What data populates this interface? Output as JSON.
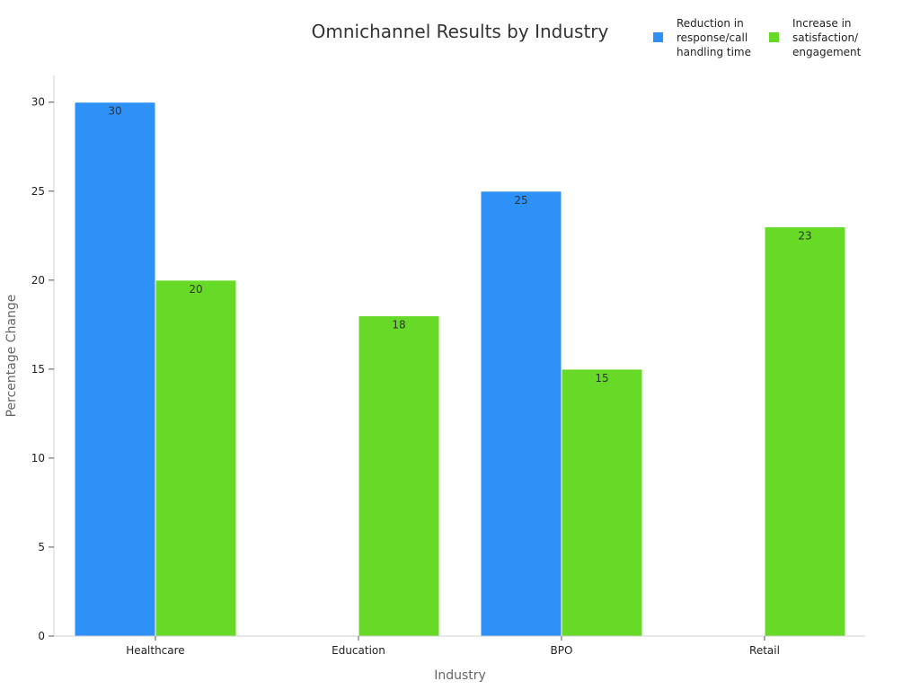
{
  "chart_data": {
    "type": "bar",
    "title": "Omnichannel Results by Industry",
    "xlabel": "Industry",
    "ylabel": "Percentage Change",
    "categories": [
      "Healthcare",
      "Education",
      "BPO",
      "Retail"
    ],
    "series": [
      {
        "name": "Reduction in response/call handling time",
        "legend_lines": [
          "Reduction in",
          "response/call",
          "handling time"
        ],
        "color": "#2d91f7",
        "values": [
          30,
          null,
          25,
          null
        ]
      },
      {
        "name": "Increase in satisfaction/ engagement",
        "legend_lines": [
          "Increase in",
          "satisfaction/",
          "engagement"
        ],
        "color": "#66da26",
        "values": [
          20,
          18,
          15,
          23
        ]
      }
    ],
    "ylim": [
      0,
      31.5
    ],
    "yticks": [
      0,
      5,
      10,
      15,
      20,
      25,
      30
    ],
    "grid": false,
    "legend_position": "top-right",
    "data_labels": true
  }
}
